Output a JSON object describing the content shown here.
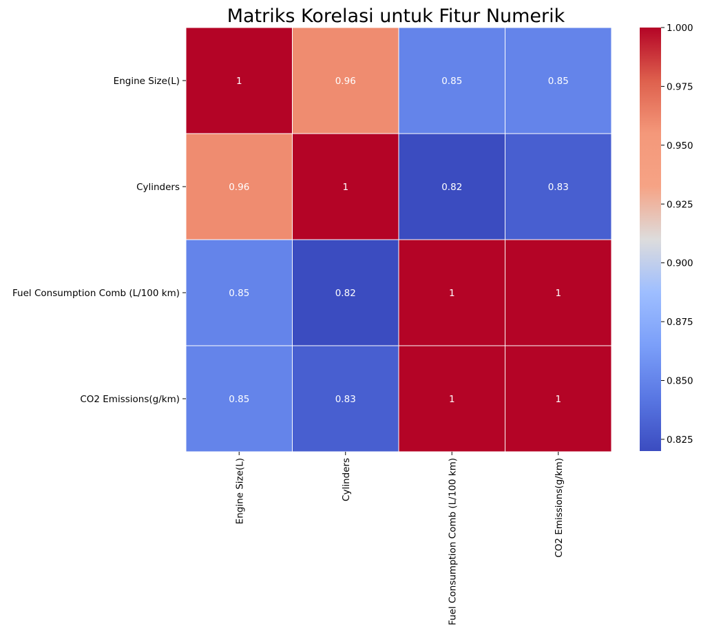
{
  "chart_data": {
    "type": "heatmap",
    "title": "Matriks Korelasi untuk Fitur Numerik",
    "row_labels": [
      "Engine Size(L)",
      "Cylinders",
      "Fuel Consumption Comb (L/100 km)",
      "CO2 Emissions(g/km)"
    ],
    "col_labels": [
      "Engine Size(L)",
      "Cylinders",
      "Fuel Consumption Comb (L/100 km)",
      "CO2 Emissions(g/km)"
    ],
    "values": [
      [
        1.0,
        0.96,
        0.85,
        0.85
      ],
      [
        0.96,
        1.0,
        0.82,
        0.83
      ],
      [
        0.85,
        0.82,
        1.0,
        1.0
      ],
      [
        0.85,
        0.83,
        1.0,
        1.0
      ]
    ],
    "annotations": [
      [
        "1",
        "0.96",
        "0.85",
        "0.85"
      ],
      [
        "0.96",
        "1",
        "0.82",
        "0.83"
      ],
      [
        "0.85",
        "0.82",
        "1",
        "1"
      ],
      [
        "0.85",
        "0.83",
        "1",
        "1"
      ]
    ],
    "colormap": "coolwarm",
    "vmin": 0.82,
    "vmax": 1.0,
    "colorbar_ticks": [
      0.825,
      0.85,
      0.875,
      0.9,
      0.925,
      0.95,
      0.975,
      1.0
    ],
    "colorbar_tick_labels": [
      "0.825",
      "0.850",
      "0.875",
      "0.900",
      "0.925",
      "0.950",
      "0.975",
      "1.000"
    ],
    "grid": true,
    "legend": "colorbar-right"
  }
}
